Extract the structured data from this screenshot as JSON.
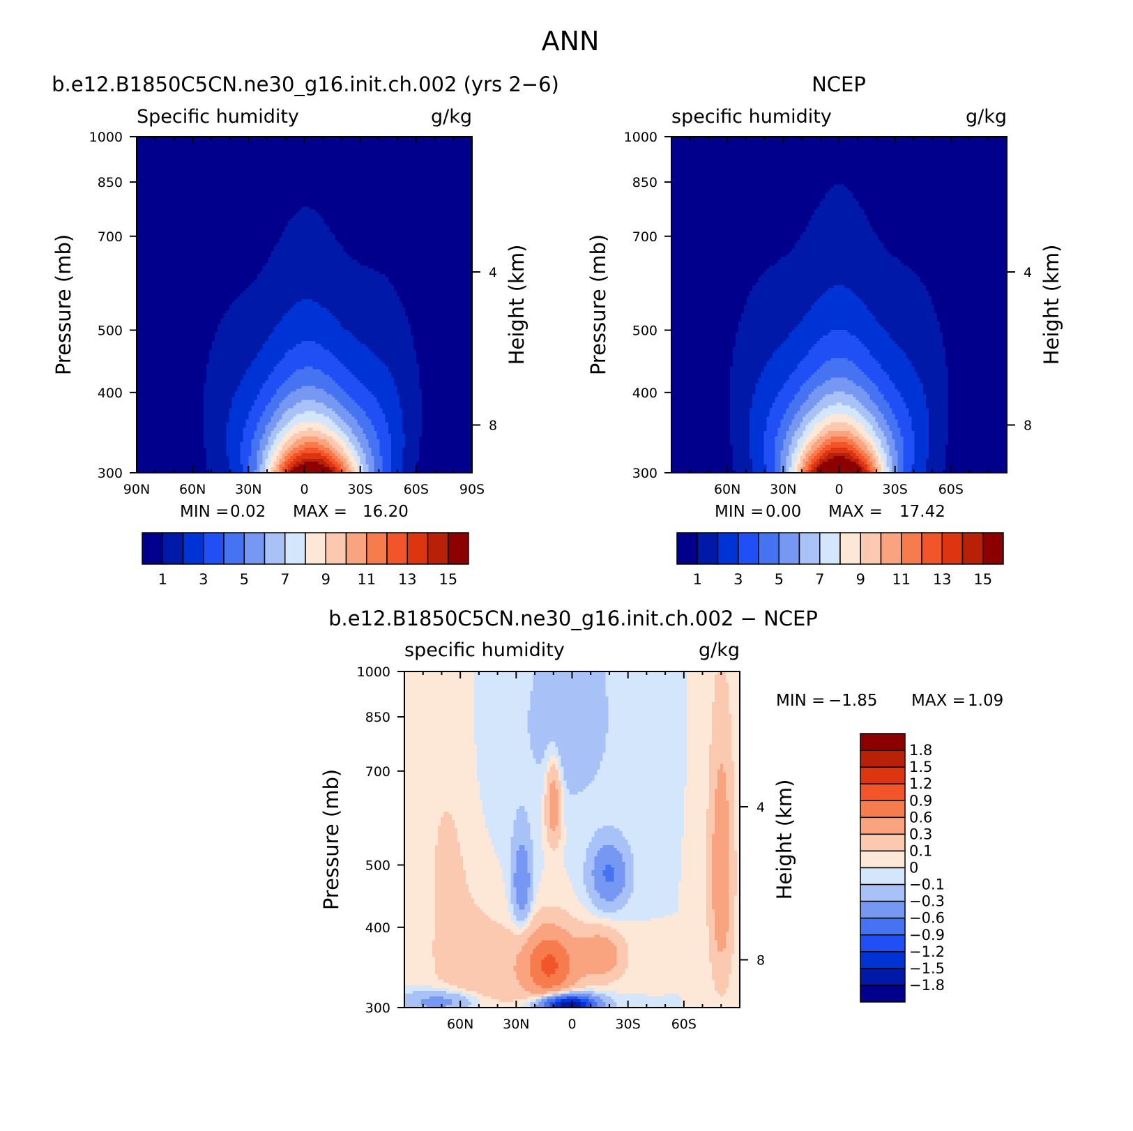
{
  "page_title": "ANN",
  "chart_data": [
    {
      "type": "heatmap",
      "panel": "top-left",
      "title": "b.e12.B1850C5CN.ne30_g16.init.ch.002 (yrs 2−6)",
      "subtitle_left": "Specific humidity",
      "subtitle_right": "g/kg",
      "ylabel": "Pressure (mb)",
      "ylabel_right": "Height (km)",
      "y_ticks": [
        "300",
        "400",
        "500",
        "700",
        "850",
        "1000"
      ],
      "y_ticks_right": [
        "8",
        "4"
      ],
      "x_ticks": [
        "90N",
        "60N",
        "30N",
        "0",
        "30S",
        "60S",
        "90S"
      ],
      "min_label": "MIN =",
      "min_value": "0.02",
      "max_label": "MAX =",
      "max_value": "16.20",
      "field": {
        "kind": "humidity",
        "peak": 16.2,
        "peak_lat": -5,
        "half_width_deg": 28,
        "scale_height_mb": 195,
        "floor_north": 0.9
      },
      "missing_region": {
        "lat_from": -50,
        "lat_to": -90,
        "p_from": 940,
        "p_to": 1000
      },
      "colorbar_labels": [
        "1",
        "3",
        "5",
        "7",
        "9",
        "11",
        "13",
        "15"
      ],
      "levels": [
        1,
        2,
        3,
        4,
        5,
        6,
        7,
        8,
        9,
        10,
        11,
        12,
        13,
        14,
        15
      ],
      "colors": [
        "#00008c",
        "#0019a8",
        "#0033d6",
        "#1f4ff5",
        "#4673f2",
        "#7698f2",
        "#a8c1f7",
        "#d4e6fc",
        "#fde7d6",
        "#fbc8b0",
        "#f9a37f",
        "#f67c4e",
        "#f2552a",
        "#de3511",
        "#b82108",
        "#8c0000"
      ]
    },
    {
      "type": "heatmap",
      "panel": "top-right",
      "title": "NCEP",
      "subtitle_left": "specific humidity",
      "subtitle_right": "g/kg",
      "ylabel": "Pressure (mb)",
      "ylabel_right": "Height (km)",
      "y_ticks": [
        "300",
        "400",
        "500",
        "700",
        "850",
        "1000"
      ],
      "y_ticks_right": [
        "8",
        "4"
      ],
      "x_ticks": [
        "60N",
        "30N",
        "0",
        "30S",
        "60S"
      ],
      "min_label": "MIN =",
      "min_value": "0.00",
      "max_label": "MAX =",
      "max_value": "17.42",
      "field": {
        "kind": "humidity",
        "peak": 17.42,
        "peak_lat": 0,
        "half_width_deg": 27,
        "scale_height_mb": 200,
        "floor_north": 1.4
      },
      "colorbar_labels": [
        "1",
        "3",
        "5",
        "7",
        "9",
        "11",
        "13",
        "15"
      ],
      "levels": [
        1,
        2,
        3,
        4,
        5,
        6,
        7,
        8,
        9,
        10,
        11,
        12,
        13,
        14,
        15
      ],
      "colors": [
        "#00008c",
        "#0019a8",
        "#0033d6",
        "#1f4ff5",
        "#4673f2",
        "#7698f2",
        "#a8c1f7",
        "#d4e6fc",
        "#fde7d6",
        "#fbc8b0",
        "#f9a37f",
        "#f67c4e",
        "#f2552a",
        "#de3511",
        "#b82108",
        "#8c0000"
      ]
    },
    {
      "type": "heatmap",
      "panel": "bottom",
      "title": "b.e12.B1850C5CN.ne30_g16.init.ch.002 − NCEP",
      "subtitle_left": "specific humidity",
      "subtitle_right": "g/kg",
      "ylabel": "Pressure (mb)",
      "ylabel_right": "Height (km)",
      "y_ticks": [
        "300",
        "400",
        "500",
        "700",
        "850",
        "1000"
      ],
      "y_ticks_right": [
        "8",
        "4"
      ],
      "x_ticks": [
        "60N",
        "30N",
        "0",
        "30S",
        "60S"
      ],
      "min_label": "MIN =",
      "min_value": "−1.85",
      "max_label": "MAX =",
      "max_value": "1.09",
      "field": {
        "kind": "difference"
      },
      "missing_region": {
        "lat_from": -45,
        "lat_to": -90,
        "p_from": 955,
        "p_to": 1000
      },
      "colorbar_labels": [
        "1.8",
        "1.5",
        "1.2",
        "0.9",
        "0.6",
        "0.3",
        "0.1",
        "0",
        "−0.1",
        "−0.3",
        "−0.6",
        "−0.9",
        "−1.2",
        "−1.5",
        "−1.8"
      ],
      "levels": [
        -1.8,
        -1.5,
        -1.2,
        -0.9,
        -0.6,
        -0.3,
        -0.1,
        0,
        0.1,
        0.3,
        0.6,
        0.9,
        1.2,
        1.5,
        1.8
      ],
      "colors": [
        "#00008c",
        "#0019a8",
        "#0033d6",
        "#1f4ff5",
        "#4673f2",
        "#7698f2",
        "#a8c1f7",
        "#d4e6fc",
        "#fde7d6",
        "#fbc8b0",
        "#f9a37f",
        "#f67c4e",
        "#f2552a",
        "#de3511",
        "#b82108",
        "#8c0000"
      ]
    }
  ]
}
